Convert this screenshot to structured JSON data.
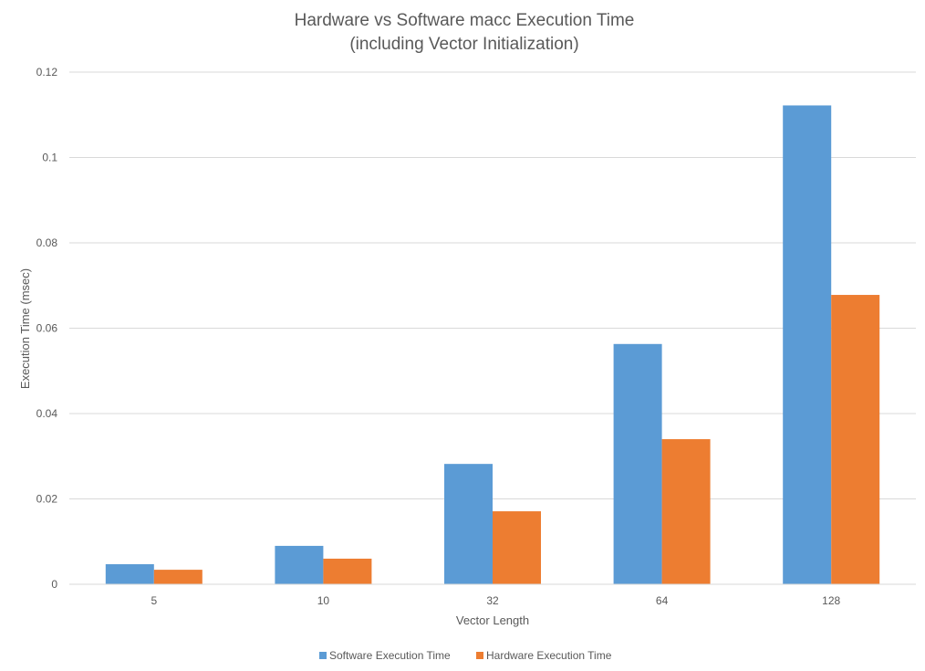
{
  "chart_data": {
    "type": "bar",
    "title": "Hardware vs Software macc Execution Time",
    "subtitle": "(including Vector Initialization)",
    "xlabel": "Vector Length",
    "ylabel": "Execution Time (msec)",
    "categories": [
      "5",
      "10",
      "32",
      "64",
      "128"
    ],
    "ylim": [
      0,
      0.12
    ],
    "yticks": [
      0,
      0.02,
      0.04,
      0.06,
      0.08,
      0.1,
      0.12
    ],
    "ytick_labels": [
      "0",
      "0.02",
      "0.04",
      "0.06",
      "0.08",
      "0.1",
      "0.12"
    ],
    "grid": true,
    "legend_position": "bottom",
    "series": [
      {
        "name": "Software Execution Time",
        "color": "#5b9bd5",
        "values": [
          0.0047,
          0.009,
          0.0282,
          0.0563,
          0.1122
        ]
      },
      {
        "name": "Hardware Execution Time",
        "color": "#ed7d31",
        "values": [
          0.0034,
          0.006,
          0.0171,
          0.034,
          0.0678
        ]
      }
    ]
  }
}
